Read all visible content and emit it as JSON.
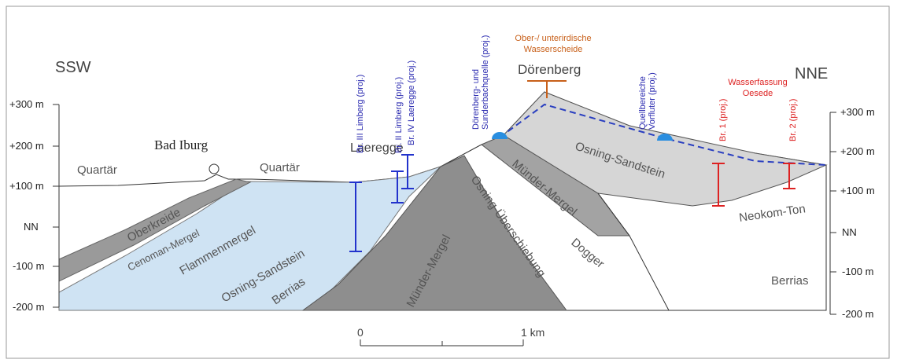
{
  "orientation": {
    "left": "SSW",
    "right": "NNE"
  },
  "axis": {
    "left": [
      "+300 m",
      "+200 m",
      "+100 m",
      "NN",
      "-100 m",
      "-200 m"
    ],
    "right": [
      "+300 m",
      "+200 m",
      "+100 m",
      "NN",
      "-100 m",
      "-200 m"
    ]
  },
  "places": {
    "bad_iburg": "Bad Iburg",
    "laeregge": "Laeregge",
    "doerenberg": "Dörenberg"
  },
  "units": {
    "quartaer_left": "Quartär",
    "quartaer_mid": "Quartär",
    "oberkreide": "Oberkreide",
    "cenoman": "Cenoman-Mergel",
    "flammenmergel": "Flammenmergel",
    "osning_left": "Osning-Sandstein",
    "berrias_left": "Berrias",
    "muender_left": "Münder-Mergel",
    "ueberschiebung": "Osning-Überschiebung",
    "muender_right": "Münder-Mergel",
    "dogger": "Dogger",
    "osning_right": "Osning-Sandstein",
    "neokom": "Neokom-Ton",
    "berrias_right": "Berrias"
  },
  "wells": {
    "br3": "Br. III Limberg (proj.)",
    "br2": "Br. II Limberg (proj.)",
    "br4": "Br. IV Laeregge (proj.)",
    "br1_oesede": "Br. 1 (proj.)",
    "br2_oesede": "Br. 2 (proj.)"
  },
  "annotations": {
    "spring": [
      "Dörenberg- und",
      "Sunderbachquelle (proj.)"
    ],
    "outflow": [
      "Quellbereiche",
      "Vorfluter (proj.)"
    ],
    "divide": [
      "Ober-/ unterirdische",
      "Wasserscheide"
    ],
    "intake": [
      "Wasserfassung",
      "Oesede"
    ]
  },
  "scale": {
    "start": "0",
    "end": "1 km"
  }
}
